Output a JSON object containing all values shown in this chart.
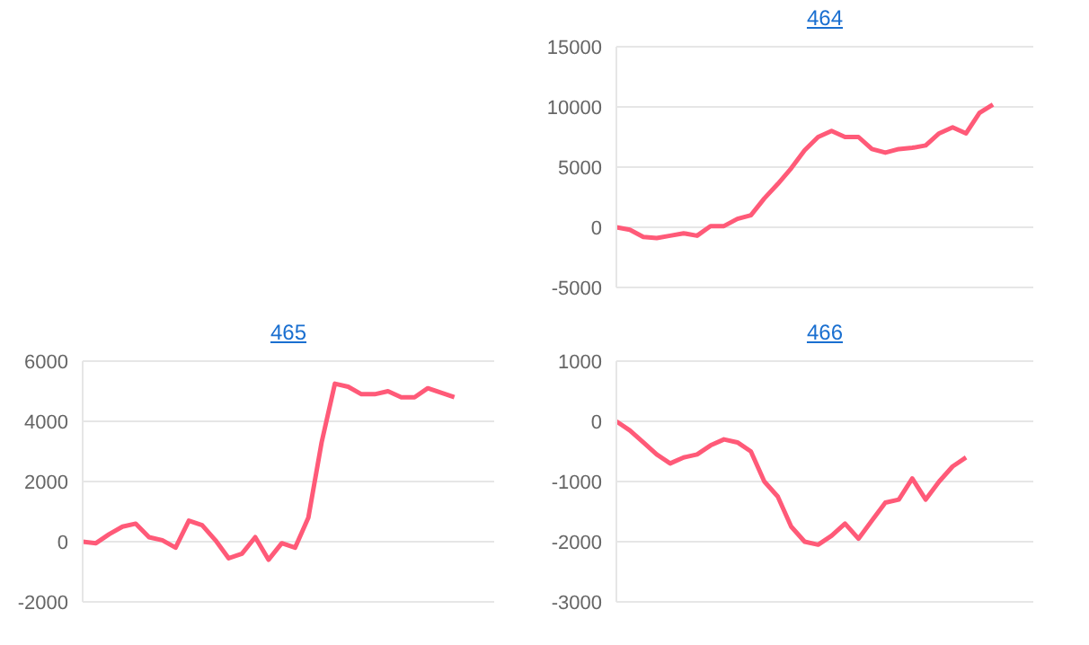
{
  "chart_data": [
    {
      "type": "line",
      "title": "464",
      "categories": [
        null,
        null,
        null,
        null,
        null,
        null,
        null,
        null,
        null,
        null,
        null,
        null,
        null,
        null,
        null,
        null,
        null,
        null,
        null,
        null,
        null,
        null,
        null,
        null,
        null,
        null,
        null,
        null,
        null,
        null,
        null,
        null
      ],
      "series": [
        {
          "color": "#ff5a78",
          "values": [
            0,
            -200,
            -800,
            -900,
            -700,
            -500,
            -700,
            100,
            100,
            700,
            1000,
            2400,
            3600,
            4900,
            6400,
            7500,
            8000,
            7500,
            7500,
            6500,
            6200,
            6500,
            6600,
            6800,
            7800,
            8300,
            7800,
            9500,
            10200,
            null,
            null,
            null
          ]
        }
      ],
      "ylim": [
        -5000,
        15000
      ],
      "yticks": [
        -5000,
        0,
        5000,
        10000,
        15000
      ],
      "grid": "y",
      "tick_labels": "y",
      "marker": "none",
      "line_style": "solid",
      "legend": false
    },
    {
      "type": "line",
      "title": "465",
      "categories": [
        null,
        null,
        null,
        null,
        null,
        null,
        null,
        null,
        null,
        null,
        null,
        null,
        null,
        null,
        null,
        null,
        null,
        null,
        null,
        null,
        null,
        null,
        null,
        null,
        null,
        null,
        null,
        null,
        null,
        null,
        null,
        null
      ],
      "series": [
        {
          "color": "#ff5a78",
          "values": [
            0,
            -50,
            250,
            500,
            600,
            150,
            50,
            -200,
            700,
            550,
            50,
            -550,
            -400,
            150,
            -600,
            -50,
            -200,
            800,
            3300,
            5250,
            5150,
            4900,
            4900,
            5000,
            4800,
            4800,
            5100,
            4950,
            4800,
            null,
            null,
            null
          ]
        }
      ],
      "ylim": [
        -2000,
        6000
      ],
      "yticks": [
        -2000,
        0,
        2000,
        4000,
        6000
      ],
      "grid": "y",
      "tick_labels": "y",
      "marker": "none",
      "line_style": "solid",
      "legend": false
    },
    {
      "type": "line",
      "title": "466",
      "categories": [
        null,
        null,
        null,
        null,
        null,
        null,
        null,
        null,
        null,
        null,
        null,
        null,
        null,
        null,
        null,
        null,
        null,
        null,
        null,
        null,
        null,
        null,
        null,
        null,
        null,
        null,
        null,
        null,
        null,
        null,
        null,
        null
      ],
      "series": [
        {
          "color": "#ff5a78",
          "values": [
            0,
            -150,
            -350,
            -550,
            -700,
            -600,
            -550,
            -400,
            -300,
            -350,
            -500,
            -1000,
            -1250,
            -1750,
            -2000,
            -2050,
            -1900,
            -1700,
            -1950,
            -1650,
            -1350,
            -1300,
            -950,
            -1300,
            -1000,
            -750,
            -600,
            null,
            null,
            null,
            null,
            null
          ]
        }
      ],
      "ylim": [
        -3000,
        1000
      ],
      "yticks": [
        -3000,
        -2000,
        -1000,
        0,
        1000
      ],
      "grid": "y",
      "tick_labels": "y",
      "marker": "none",
      "line_style": "solid",
      "legend": false
    }
  ]
}
